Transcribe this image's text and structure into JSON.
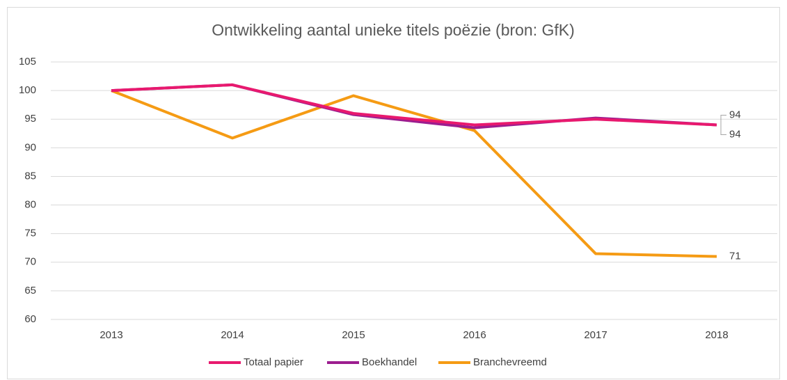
{
  "chart_data": {
    "type": "line",
    "title": "Ontwikkeling aantal unieke titels poëzie (bron: GfK)",
    "categories": [
      "2013",
      "2014",
      "2015",
      "2016",
      "2017",
      "2018"
    ],
    "series": [
      {
        "name": "Totaal papier",
        "color": "#e8196e",
        "values": [
          100,
          101,
          96,
          94,
          95,
          94
        ]
      },
      {
        "name": "Boekhandel",
        "color": "#9c1d8f",
        "values": [
          100,
          101,
          95.8,
          93.5,
          95.2,
          94
        ]
      },
      {
        "name": "Branchevreemd",
        "color": "#f59b14",
        "values": [
          100,
          91.7,
          99.1,
          93,
          71.5,
          71
        ]
      }
    ],
    "data_labels": "last",
    "ylim": [
      60,
      105
    ],
    "yticks": [
      60,
      65,
      70,
      75,
      80,
      85,
      90,
      95,
      100,
      105
    ],
    "grid": true,
    "legend": "bottom"
  }
}
